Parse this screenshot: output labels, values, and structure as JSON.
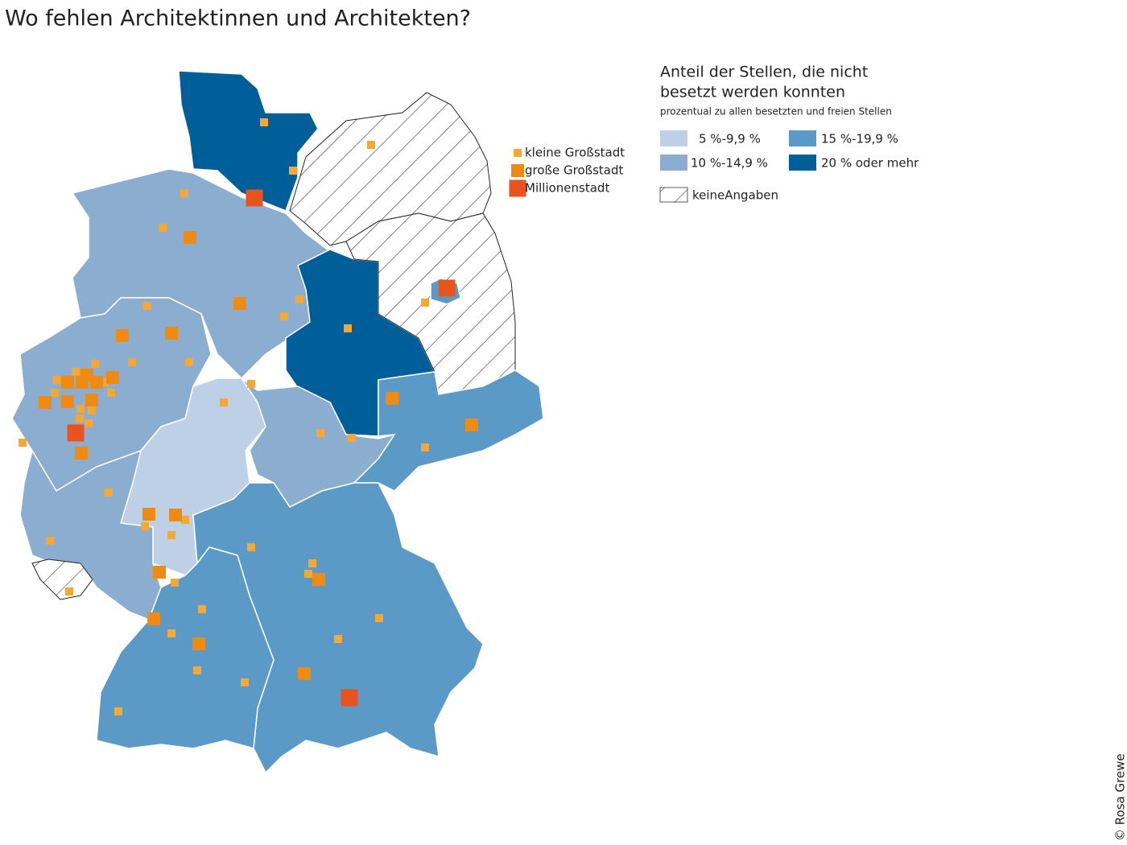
{
  "title": "Wo fehlen Architektinnen und Architekten?",
  "legend": {
    "title_lines": [
      "Anteil der Stellen, die nicht",
      "besetzt werden konnten"
    ],
    "subtitle": "prozentual zu allen besetzten und freien Stellen",
    "classes": [
      {
        "label": "5 %-9,9 %",
        "color": "#bdd0e6"
      },
      {
        "label": "10 %-14,9 %",
        "color": "#8aadd0"
      },
      {
        "label": "15 %-19,9 %",
        "color": "#5b99c6"
      },
      {
        "label": "20 % oder mehr",
        "color": "#005e98"
      }
    ],
    "no_data": "keineAngaben"
  },
  "city_legend": [
    {
      "label": "kleine Großstadt",
      "color": "#f5a833"
    },
    {
      "label": "große Großstadt",
      "color": "#ef8b12"
    },
    {
      "label": "Millionenstadt",
      "color": "#e8531e"
    }
  ],
  "credit": "© Rosa Grewe"
}
